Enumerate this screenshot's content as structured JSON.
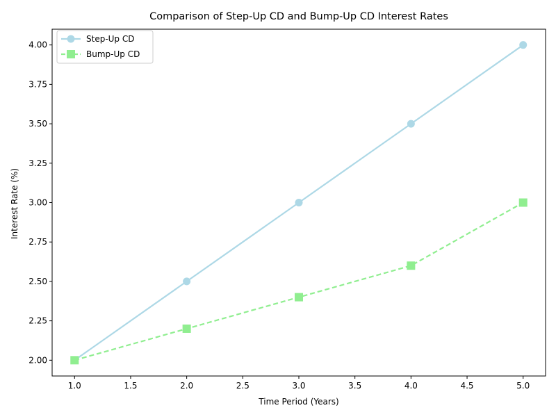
{
  "chart_data": {
    "type": "line",
    "title": "Comparison of Step-Up CD and Bump-Up CD Interest Rates",
    "xlabel": "Time Period (Years)",
    "ylabel": "Interest Rate (%)",
    "x": [
      1,
      2,
      3,
      4,
      5
    ],
    "xlim": [
      0.8,
      5.2
    ],
    "ylim": [
      1.9,
      4.1
    ],
    "xticks": [
      1.0,
      1.5,
      2.0,
      2.5,
      3.0,
      3.5,
      4.0,
      4.5,
      5.0
    ],
    "yticks": [
      2.0,
      2.25,
      2.5,
      2.75,
      3.0,
      3.25,
      3.5,
      3.75,
      4.0
    ],
    "xtick_labels": [
      "1.0",
      "1.5",
      "2.0",
      "2.5",
      "3.0",
      "3.5",
      "4.0",
      "4.5",
      "5.0"
    ],
    "ytick_labels": [
      "2.00",
      "2.25",
      "2.50",
      "2.75",
      "3.00",
      "3.25",
      "3.50",
      "3.75",
      "4.00"
    ],
    "grid": false,
    "legend_position": "top-left",
    "series": [
      {
        "name": "Step-Up CD",
        "values": [
          2.0,
          2.5,
          3.0,
          3.5,
          4.0
        ],
        "color": "#add8e6",
        "marker": "circle",
        "line_style": "solid"
      },
      {
        "name": "Bump-Up CD",
        "values": [
          2.0,
          2.2,
          2.4,
          2.6,
          3.0
        ],
        "color": "#90ee90",
        "marker": "square",
        "line_style": "dashed"
      }
    ]
  }
}
